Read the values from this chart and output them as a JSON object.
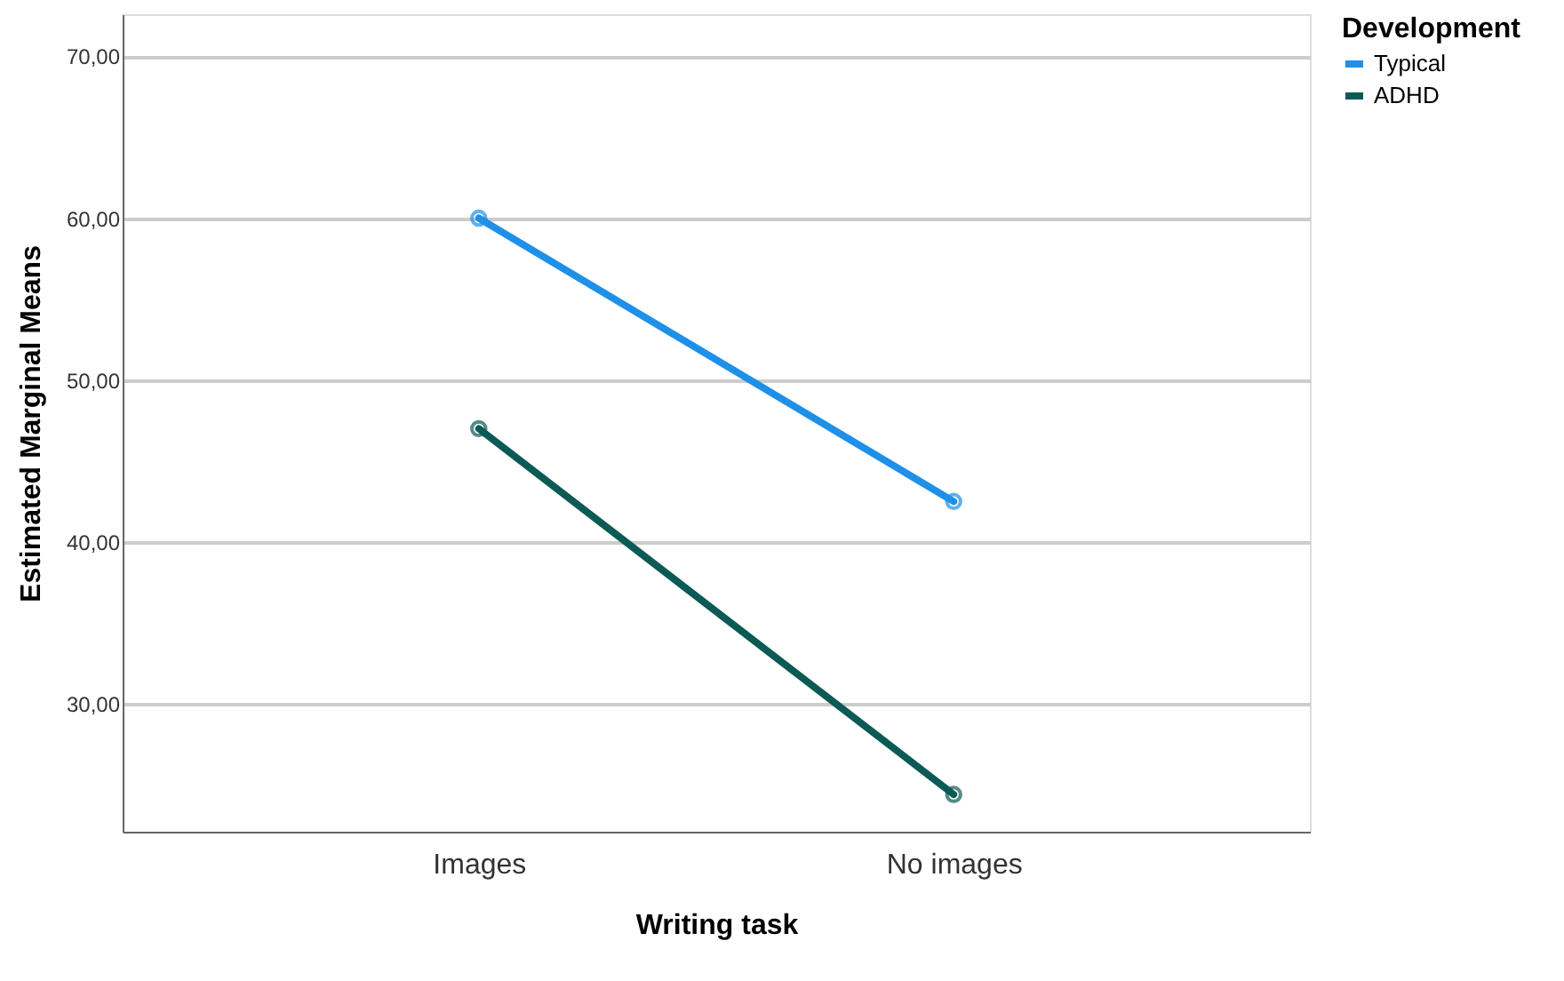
{
  "chart_data": {
    "type": "line",
    "xlabel": "Writing task",
    "ylabel": "Estimated Marginal Means",
    "legend_title": "Development",
    "categories": [
      "Images",
      "No images"
    ],
    "series": [
      {
        "name": "Typical",
        "color": "#1e90e8",
        "values": [
          60.0,
          42.5
        ]
      },
      {
        "name": "ADHD",
        "color": "#0b5a55",
        "values": [
          47.0,
          24.4
        ]
      }
    ],
    "ylim": [
      22.1,
      72.6
    ],
    "yticks": [
      {
        "value": 30,
        "label": "30,00"
      },
      {
        "value": 40,
        "label": "40,00"
      },
      {
        "value": 50,
        "label": "50,00"
      },
      {
        "value": 60,
        "label": "60,00"
      },
      {
        "value": 70,
        "label": "70,00"
      }
    ],
    "grid": "y",
    "legend": "top right",
    "marker": "circle",
    "line_style": "solid"
  }
}
